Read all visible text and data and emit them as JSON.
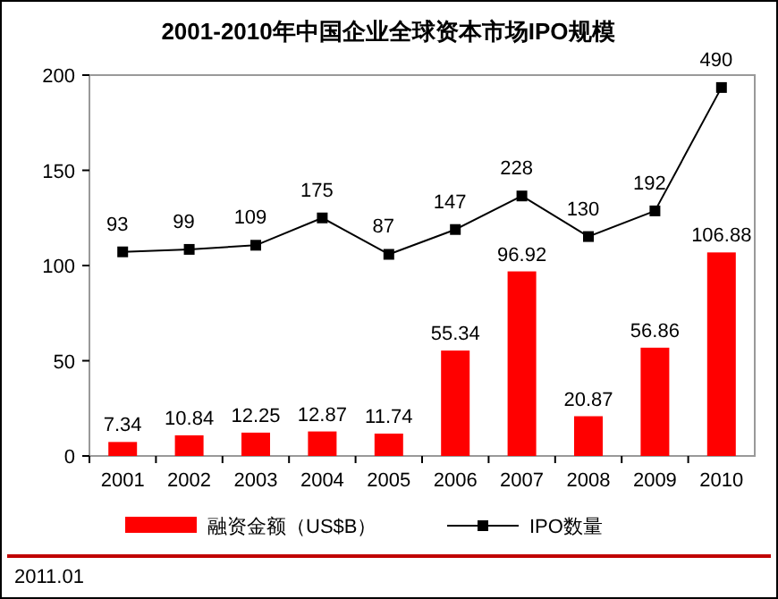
{
  "chart_data": {
    "type": "bar",
    "title": "2001-2010年中国企业全球资本市场IPO规模",
    "categories": [
      "2001",
      "2002",
      "2003",
      "2004",
      "2005",
      "2006",
      "2007",
      "2008",
      "2009",
      "2010"
    ],
    "series": [
      {
        "name": "融资金额（US$B）",
        "color": "#ff0000",
        "values": [
          7.34,
          10.84,
          12.25,
          12.87,
          11.74,
          55.34,
          96.92,
          20.87,
          56.86,
          106.88
        ]
      },
      {
        "name": "IPO数量",
        "type": "line",
        "axis": "y2",
        "color": "#000000",
        "marker": "square",
        "values": [
          93,
          99,
          109,
          175,
          87,
          147,
          228,
          130,
          192,
          490
        ]
      }
    ],
    "ylim": [
      0,
      200
    ],
    "yticks": [
      0,
      50,
      100,
      150,
      200
    ],
    "y2lim": [
      -400,
      520
    ],
    "data_labels": true,
    "grid": false,
    "legend": "bottom",
    "annotations": [
      "2011.01"
    ]
  }
}
